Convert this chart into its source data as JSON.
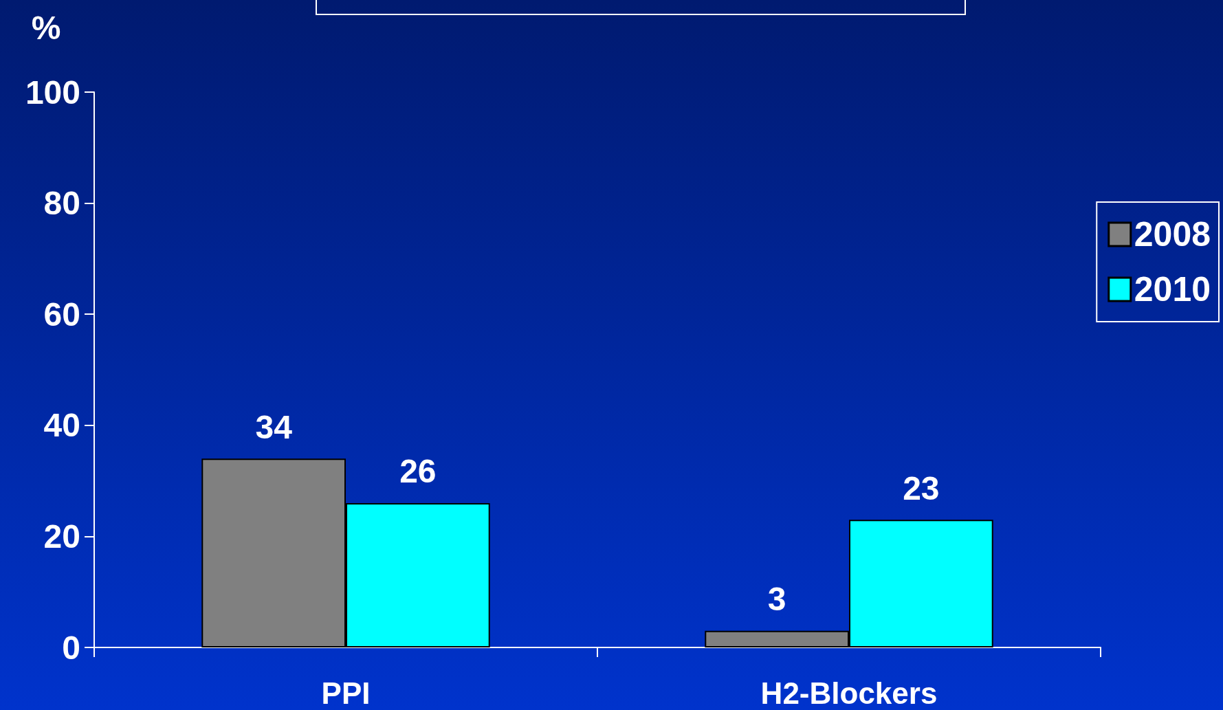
{
  "chart_data": {
    "type": "bar",
    "ylabel": "%",
    "categories": [
      "PPI",
      "H2-Blockers"
    ],
    "series": [
      {
        "name": "2008",
        "color": "#808080",
        "values": [
          34,
          3
        ]
      },
      {
        "name": "2010",
        "color": "#00ffff",
        "values": [
          26,
          23
        ]
      }
    ],
    "ylim": [
      0,
      100
    ],
    "yticks": [
      0,
      20,
      40,
      60,
      80,
      100
    ],
    "grid": false,
    "legend": "right",
    "data_labels": true
  }
}
